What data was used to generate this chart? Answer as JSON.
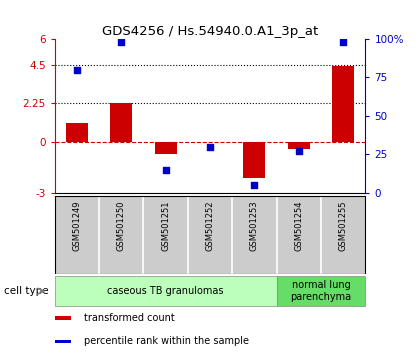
{
  "title": "GDS4256 / Hs.54940.0.A1_3p_at",
  "samples": [
    "GSM501249",
    "GSM501250",
    "GSM501251",
    "GSM501252",
    "GSM501253",
    "GSM501254",
    "GSM501255"
  ],
  "transformed_count": [
    1.1,
    2.25,
    -0.7,
    -0.05,
    -2.1,
    -0.45,
    4.4
  ],
  "percentile_rank": [
    80,
    98,
    15,
    30,
    5,
    27,
    98
  ],
  "ylim_left": [
    -3,
    6
  ],
  "ylim_right": [
    0,
    100
  ],
  "yticks_left": [
    -3,
    0,
    2.25,
    4.5,
    6
  ],
  "yticks_left_labels": [
    "-3",
    "0",
    "2.25",
    "4.5",
    "6"
  ],
  "yticks_right": [
    0,
    25,
    50,
    75,
    100
  ],
  "yticks_right_labels": [
    "0",
    "25",
    "50",
    "75",
    "100%"
  ],
  "hlines": [
    4.5,
    2.25
  ],
  "bar_color": "#cc0000",
  "dot_color": "#0000cc",
  "zero_line_color": "#cc0000",
  "sample_box_color": "#cccccc",
  "cell_groups": [
    {
      "label": "caseous TB granulomas",
      "samples_idx": [
        0,
        1,
        2,
        3,
        4
      ],
      "color": "#bbffbb"
    },
    {
      "label": "normal lung\nparenchyma",
      "samples_idx": [
        5,
        6
      ],
      "color": "#66dd66"
    }
  ],
  "cell_type_label": "cell type",
  "legend_entries": [
    {
      "color": "#cc0000",
      "label": "transformed count"
    },
    {
      "color": "#0000cc",
      "label": "percentile rank within the sample"
    }
  ],
  "background_color": "#ffffff"
}
